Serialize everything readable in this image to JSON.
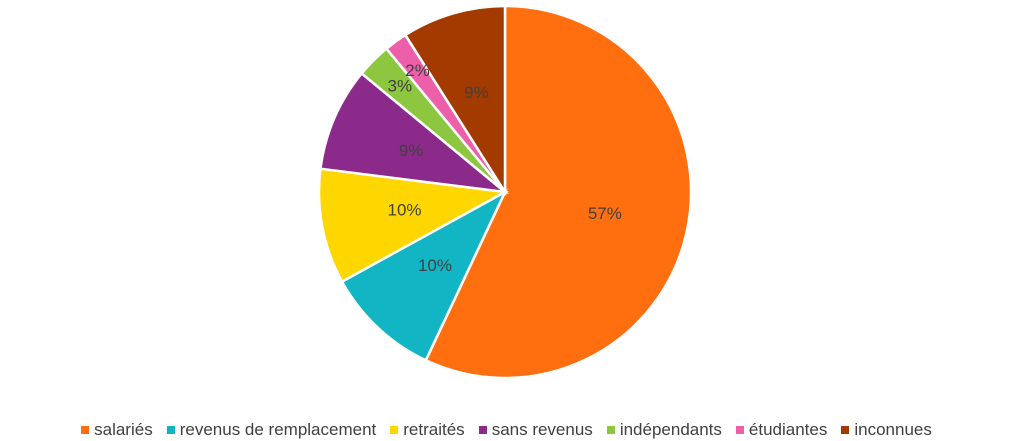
{
  "chart_data": {
    "type": "pie",
    "categories": [
      "salariés",
      "revenus de remplacement",
      "retraités",
      "sans revenus",
      "indépendants",
      "étudiantes",
      "inconnues"
    ],
    "values": [
      57,
      10,
      10,
      9,
      3,
      2,
      9
    ],
    "value_labels": [
      "57%",
      "10%",
      "10%",
      "9%",
      "3%",
      "2%",
      "9%"
    ],
    "colors": [
      "#ff6f10",
      "#12b5c3",
      "#ffd700",
      "#8b2a8b",
      "#8dc63f",
      "#ee5faa",
      "#a33a00"
    ],
    "legend": "bottom"
  }
}
